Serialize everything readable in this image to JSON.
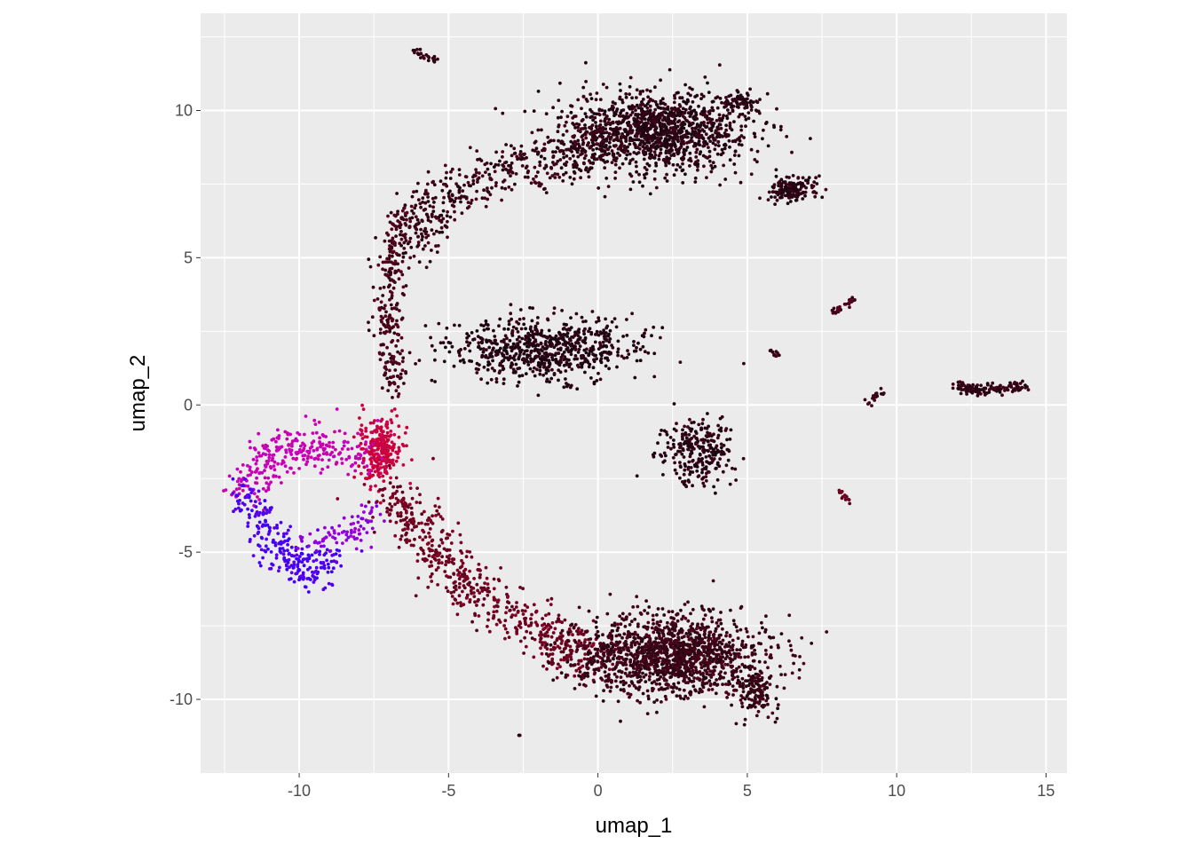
{
  "chart_data": {
    "type": "scatter",
    "title": "",
    "xlabel": "umap_1",
    "ylabel": "umap_2",
    "xlim": [
      -13.3,
      15.7
    ],
    "ylim": [
      -12.5,
      13.3
    ],
    "x_ticks": [
      -10,
      -5,
      0,
      5,
      10,
      15
    ],
    "x_tick_labels": [
      "-10",
      "-5",
      "0",
      "5",
      "10",
      "15"
    ],
    "y_ticks": [
      -10,
      -5,
      0,
      5,
      10
    ],
    "y_tick_labels": [
      "-10",
      "-5",
      "0",
      "5",
      "10"
    ],
    "grid": true,
    "legend": "none",
    "background_color": "#ebebeb",
    "grid_color": "#ffffff",
    "point_color_scale": [
      "#1a0510",
      "#cc0033",
      "#c800c8",
      "#2200ff"
    ],
    "clusters": [
      {
        "name": "upper-right-mass",
        "center": [
          2.0,
          9.3
        ],
        "spread": [
          2.6,
          1.1
        ],
        "n": 1200,
        "color": 0.03
      },
      {
        "name": "upper-right-tail",
        "center": [
          6.5,
          7.3
        ],
        "spread": [
          0.6,
          0.4
        ],
        "n": 150,
        "color": 0.03
      },
      {
        "name": "upper-right-spike",
        "center": [
          4.8,
          10.3
        ],
        "spread": [
          0.5,
          0.25
        ],
        "n": 60,
        "color": 0.03
      },
      {
        "name": "upper-arm",
        "path": [
          [
            -6.5,
            5.0
          ],
          [
            -5.5,
            7.0
          ],
          [
            -3.0,
            8.0
          ],
          [
            -1.0,
            8.5
          ],
          [
            0.5,
            9.2
          ]
        ],
        "spread": 0.45,
        "n": 500,
        "color": 0.05
      },
      {
        "name": "left-stem",
        "path": [
          [
            -6.8,
            0.5
          ],
          [
            -7.0,
            2.5
          ],
          [
            -7.0,
            4.5
          ],
          [
            -6.5,
            6.5
          ]
        ],
        "spread": 0.25,
        "n": 250,
        "color": 0.08
      },
      {
        "name": "middle-band",
        "center": [
          -1.8,
          1.9
        ],
        "spread": [
          2.6,
          0.9
        ],
        "n": 700,
        "color": 0.02
      },
      {
        "name": "center-ring",
        "center": [
          3.3,
          -1.6
        ],
        "spread": [
          1.0,
          0.9
        ],
        "n": 260,
        "color": 0.03
      },
      {
        "name": "red-junction",
        "center": [
          -7.3,
          -1.5
        ],
        "spread": [
          0.6,
          0.9
        ],
        "n": 260,
        "color": 0.36
      },
      {
        "name": "magenta-arc",
        "path": [
          [
            -7.8,
            -1.7
          ],
          [
            -9.5,
            -1.4
          ],
          [
            -11.0,
            -1.7
          ],
          [
            -11.8,
            -3.0
          ]
        ],
        "spread": 0.35,
        "n": 280,
        "color": 0.62
      },
      {
        "name": "blue-lobe",
        "path": [
          [
            -11.8,
            -3.0
          ],
          [
            -11.0,
            -4.5
          ],
          [
            -10.0,
            -5.6
          ],
          [
            -8.8,
            -5.3
          ]
        ],
        "spread": 0.35,
        "n": 260,
        "color": 0.92
      },
      {
        "name": "purple-link",
        "path": [
          [
            -9.5,
            -4.6
          ],
          [
            -8.2,
            -4.3
          ],
          [
            -7.5,
            -3.6
          ]
        ],
        "spread": 0.25,
        "n": 80,
        "color": 0.78
      },
      {
        "name": "lower-arm",
        "path": [
          [
            -7.0,
            -3.0
          ],
          [
            -5.5,
            -4.8
          ],
          [
            -4.0,
            -6.5
          ],
          [
            -1.5,
            -8.0
          ],
          [
            0.0,
            -8.5
          ]
        ],
        "spread": 0.45,
        "n": 600,
        "color": 0.16
      },
      {
        "name": "lower-right-mass",
        "center": [
          2.5,
          -8.5
        ],
        "spread": [
          2.6,
          1.1
        ],
        "n": 1400,
        "color": 0.06
      },
      {
        "name": "lower-right-tip",
        "center": [
          5.3,
          -9.7
        ],
        "spread": [
          0.5,
          0.7
        ],
        "n": 120,
        "color": 0.05
      },
      {
        "name": "islet-top",
        "path": [
          [
            -6.2,
            12.0
          ],
          [
            -5.4,
            11.7
          ]
        ],
        "spread": 0.06,
        "n": 25,
        "color": 0.05
      },
      {
        "name": "islet-a",
        "path": [
          [
            7.9,
            3.1
          ],
          [
            8.5,
            3.6
          ]
        ],
        "spread": 0.07,
        "n": 30,
        "color": 0.08
      },
      {
        "name": "islet-b",
        "path": [
          [
            5.8,
            1.85
          ],
          [
            6.0,
            1.7
          ]
        ],
        "spread": 0.05,
        "n": 10,
        "color": 0.05
      },
      {
        "name": "islet-c",
        "path": [
          [
            9.1,
            0.1
          ],
          [
            9.5,
            0.5
          ]
        ],
        "spread": 0.07,
        "n": 25,
        "color": 0.05
      },
      {
        "name": "islet-d",
        "path": [
          [
            8.1,
            -3.0
          ],
          [
            8.4,
            -3.3
          ]
        ],
        "spread": 0.06,
        "n": 15,
        "color": 0.15
      },
      {
        "name": "far-right-streak",
        "path": [
          [
            12.0,
            0.6
          ],
          [
            13.0,
            0.5
          ],
          [
            14.4,
            0.65
          ]
        ],
        "spread": 0.09,
        "n": 130,
        "color": 0.04
      },
      {
        "name": "stray",
        "path": [
          [
            -2.65,
            -11.2
          ],
          [
            -2.6,
            -11.2
          ]
        ],
        "spread": 0.02,
        "n": 3,
        "color": 0.05
      }
    ]
  }
}
